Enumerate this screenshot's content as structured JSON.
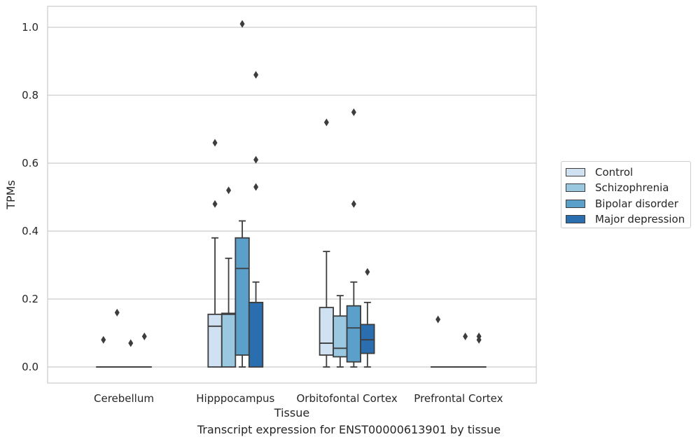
{
  "caption": "Transcript expression for ENST00000613901 by tissue",
  "chart_data": {
    "type": "box",
    "title": "",
    "xlabel": "Tissue",
    "ylabel": "TPMs",
    "ylim": [
      -0.05,
      1.06
    ],
    "yticks": [
      "0.0",
      "0.2",
      "0.4",
      "0.6",
      "0.8",
      "1.0"
    ],
    "grid": "horizontal",
    "legend_position": "right",
    "categories": [
      "Cerebellum",
      "Hipppocampus",
      "Orbitofontal Cortex",
      "Prefrontal Cortex"
    ],
    "series": [
      {
        "name": "Control",
        "color": "#d0e1f2",
        "boxes": [
          {
            "q1": 0,
            "median": 0,
            "q3": 0,
            "whisker_low": 0,
            "whisker_high": 0,
            "outliers": [
              0.08
            ]
          },
          {
            "q1": 0,
            "median": 0.12,
            "q3": 0.155,
            "whisker_low": 0,
            "whisker_high": 0.38,
            "outliers": [
              0.48,
              0.66
            ]
          },
          {
            "q1": 0.035,
            "median": 0.07,
            "q3": 0.175,
            "whisker_low": 0,
            "whisker_high": 0.34,
            "outliers": [
              0.72
            ]
          },
          {
            "q1": 0,
            "median": 0,
            "q3": 0,
            "whisker_low": 0,
            "whisker_high": 0,
            "outliers": [
              0.14
            ]
          }
        ]
      },
      {
        "name": "Schizophrenia",
        "color": "#9ac8e0",
        "boxes": [
          {
            "q1": 0,
            "median": 0,
            "q3": 0,
            "whisker_low": 0,
            "whisker_high": 0,
            "outliers": [
              0.16
            ]
          },
          {
            "q1": 0,
            "median": 0.155,
            "q3": 0.158,
            "whisker_low": 0,
            "whisker_high": 0.32,
            "outliers": [
              0.52
            ]
          },
          {
            "q1": 0.03,
            "median": 0.055,
            "q3": 0.15,
            "whisker_low": 0,
            "whisker_high": 0.21,
            "outliers": []
          },
          {
            "q1": 0,
            "median": 0,
            "q3": 0,
            "whisker_low": 0,
            "whisker_high": 0,
            "outliers": []
          }
        ]
      },
      {
        "name": "Bipolar disorder",
        "color": "#5b9fcb",
        "boxes": [
          {
            "q1": 0,
            "median": 0,
            "q3": 0,
            "whisker_low": 0,
            "whisker_high": 0,
            "outliers": [
              0.07
            ]
          },
          {
            "q1": 0.035,
            "median": 0.29,
            "q3": 0.38,
            "whisker_low": 0,
            "whisker_high": 0.43,
            "outliers": [
              1.01
            ]
          },
          {
            "q1": 0.015,
            "median": 0.115,
            "q3": 0.18,
            "whisker_low": 0,
            "whisker_high": 0.25,
            "outliers": [
              0.48,
              0.75
            ]
          },
          {
            "q1": 0,
            "median": 0,
            "q3": 0,
            "whisker_low": 0,
            "whisker_high": 0,
            "outliers": [
              0.09
            ]
          }
        ]
      },
      {
        "name": "Major depression",
        "color": "#2a6eaf",
        "boxes": [
          {
            "q1": 0,
            "median": 0,
            "q3": 0,
            "whisker_low": 0,
            "whisker_high": 0,
            "outliers": [
              0.09
            ]
          },
          {
            "q1": 0,
            "median": 0.19,
            "q3": 0.19,
            "whisker_low": 0,
            "whisker_high": 0.25,
            "outliers": [
              0.53,
              0.61,
              0.86
            ]
          },
          {
            "q1": 0.04,
            "median": 0.08,
            "q3": 0.125,
            "whisker_low": 0,
            "whisker_high": 0.19,
            "outliers": [
              0.28
            ]
          },
          {
            "q1": 0,
            "median": 0,
            "q3": 0,
            "whisker_low": 0,
            "whisker_high": 0,
            "outliers": [
              0.08,
              0.09
            ]
          }
        ]
      }
    ]
  }
}
